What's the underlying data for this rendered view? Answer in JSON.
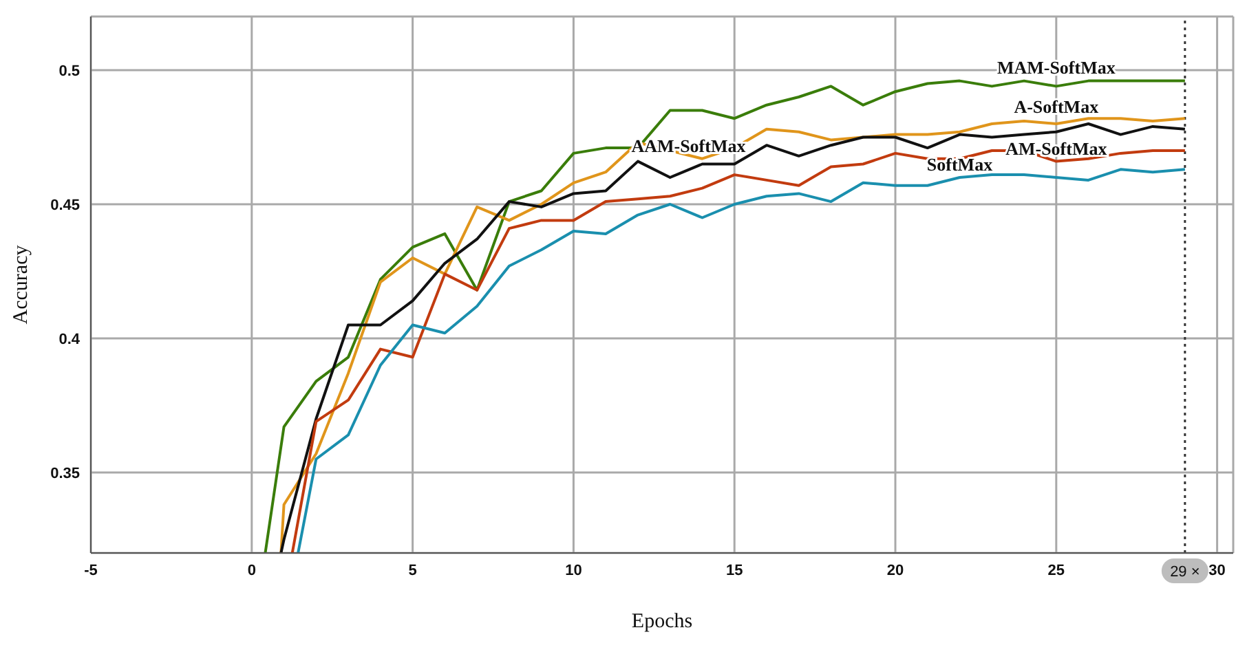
{
  "chart_data": {
    "type": "line",
    "xlabel": "Epochs",
    "ylabel": "Accuracy",
    "xlim": [
      -5,
      30.5
    ],
    "ylim": [
      0.32,
      0.52
    ],
    "xticks": [
      -5,
      0,
      5,
      10,
      15,
      20,
      25,
      30
    ],
    "yticks": [
      0.35,
      0.4,
      0.45,
      0.5
    ],
    "grid": true,
    "legend": false,
    "marker": "none",
    "line_style": "solid",
    "ref_lines": [
      {
        "axis": "x",
        "value": 29,
        "label": "29 ×",
        "line_style": "dotted",
        "color": "#333333"
      }
    ],
    "series": [
      {
        "name": "MAM-SoftMax",
        "color": "#3a7d0a",
        "x": [
          0.42,
          1,
          2,
          3,
          4,
          5,
          6,
          7,
          8,
          9,
          10,
          11,
          12,
          13,
          14,
          15,
          16,
          17,
          18,
          19,
          20,
          21,
          22,
          23,
          24,
          25,
          26,
          27,
          28,
          29
        ],
        "values": [
          0.32,
          0.367,
          0.384,
          0.393,
          0.422,
          0.434,
          0.439,
          0.418,
          0.451,
          0.455,
          0.469,
          0.471,
          0.471,
          0.485,
          0.485,
          0.482,
          0.487,
          0.49,
          0.494,
          0.487,
          0.492,
          0.495,
          0.496,
          0.494,
          0.496,
          0.494,
          0.496,
          0.496,
          0.496,
          0.496
        ]
      },
      {
        "name": "A-SoftMax",
        "color": "#e0951b",
        "x": [
          0.91,
          1,
          2,
          3,
          4,
          5,
          6,
          7,
          8,
          9,
          10,
          11,
          12,
          13,
          14,
          15,
          16,
          17,
          18,
          19,
          20,
          21,
          22,
          23,
          24,
          25,
          26,
          27,
          28,
          29
        ],
        "values": [
          0.32,
          0.338,
          0.357,
          0.387,
          0.421,
          0.43,
          0.424,
          0.449,
          0.444,
          0.45,
          0.458,
          0.462,
          0.473,
          0.47,
          0.467,
          0.471,
          0.478,
          0.477,
          0.474,
          0.475,
          0.476,
          0.476,
          0.477,
          0.48,
          0.481,
          0.48,
          0.482,
          0.482,
          0.481,
          0.482
        ]
      },
      {
        "name": "AAM-SoftMax",
        "color": "#111111",
        "x": [
          0.91,
          1,
          2,
          3,
          4,
          5,
          6,
          7,
          8,
          9,
          10,
          11,
          12,
          13,
          14,
          15,
          16,
          17,
          18,
          19,
          20,
          21,
          22,
          23,
          24,
          25,
          26,
          27,
          28,
          29
        ],
        "values": [
          0.32,
          0.325,
          0.37,
          0.405,
          0.405,
          0.414,
          0.428,
          0.437,
          0.451,
          0.449,
          0.454,
          0.455,
          0.466,
          0.46,
          0.465,
          0.465,
          0.472,
          0.468,
          0.472,
          0.475,
          0.475,
          0.471,
          0.476,
          0.475,
          0.476,
          0.477,
          0.48,
          0.476,
          0.479,
          0.478
        ]
      },
      {
        "name": "AM-SoftMax",
        "color": "#c23b0f",
        "x": [
          1.26,
          2,
          3,
          4,
          5,
          6,
          7,
          8,
          9,
          10,
          11,
          12,
          13,
          14,
          15,
          16,
          17,
          18,
          19,
          20,
          21,
          22,
          23,
          24,
          25,
          26,
          27,
          28,
          29
        ],
        "values": [
          0.32,
          0.369,
          0.377,
          0.396,
          0.393,
          0.424,
          0.418,
          0.441,
          0.444,
          0.444,
          0.451,
          0.452,
          0.453,
          0.456,
          0.461,
          0.459,
          0.457,
          0.464,
          0.465,
          0.469,
          0.467,
          0.467,
          0.47,
          0.47,
          0.466,
          0.467,
          0.469,
          0.47,
          0.47
        ]
      },
      {
        "name": "SoftMax",
        "color": "#1a8fae",
        "x": [
          1.44,
          2,
          3,
          4,
          5,
          6,
          7,
          8,
          9,
          10,
          11,
          12,
          13,
          14,
          15,
          16,
          17,
          18,
          19,
          20,
          21,
          22,
          23,
          24,
          25,
          26,
          27,
          28,
          29
        ],
        "values": [
          0.32,
          0.355,
          0.364,
          0.39,
          0.405,
          0.402,
          0.412,
          0.427,
          0.433,
          0.44,
          0.439,
          0.446,
          0.45,
          0.445,
          0.45,
          0.453,
          0.454,
          0.451,
          0.458,
          0.457,
          0.457,
          0.46,
          0.461,
          0.461,
          0.46,
          0.459,
          0.463,
          0.462,
          0.463
        ]
      }
    ]
  }
}
